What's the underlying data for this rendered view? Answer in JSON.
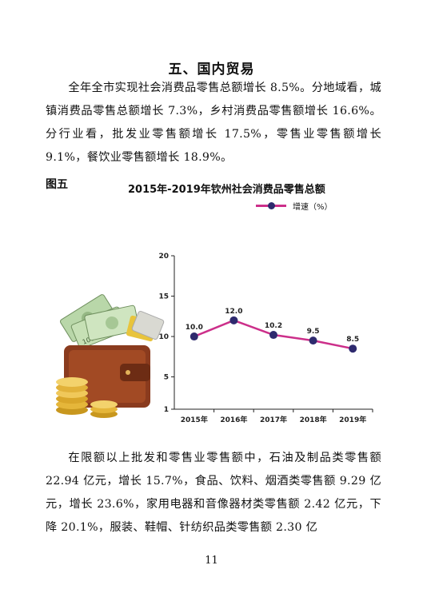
{
  "section": {
    "heading": "五、国内贸易",
    "paragraph1": "全年全市实现社会消费品零售总额增长 8.5%。分地域看，城镇消费品零售总额增长 7.3%，乡村消费品零售额增长 16.6%。分行业看，批发业零售额增长 17.5%，零售业零售额增长 9.1%，餐饮业零售额增长 18.9%。",
    "paragraph2": "在限额以上批发和零售业零售额中，石油及制品类零售额 22.94 亿元，增长 15.7%，食品、饮料、烟酒类零售额 9.29 亿元，增长 23.6%，家用电器和音像器材类零售额 2.42 亿元，下降 20.1%，服装、鞋帽、针纺织品类零售额 2.30 亿"
  },
  "figure": {
    "label": "图五"
  },
  "page_number": "11",
  "colors": {
    "line": "#cc2f8a",
    "marker": "#2e2a6e",
    "axis": "#222222"
  },
  "chart_data": {
    "type": "line",
    "title": "2015年-2019年钦州社会消费品零售总额",
    "categories": [
      "2015年",
      "2016年",
      "2017年",
      "2018年",
      "2019年"
    ],
    "series": [
      {
        "name": "增速（%）",
        "values": [
          10.0,
          12.0,
          10.2,
          9.5,
          8.5
        ]
      }
    ],
    "data_labels": [
      "10.0",
      "12.0",
      "10.2",
      "9.5",
      "8.5"
    ],
    "yticks": [
      1,
      5,
      10,
      15,
      20
    ],
    "ylim": [
      1,
      20
    ],
    "grid": false,
    "legend_position": "top-right",
    "decoration": "wallet-with-cash-and-coins-illustration"
  }
}
